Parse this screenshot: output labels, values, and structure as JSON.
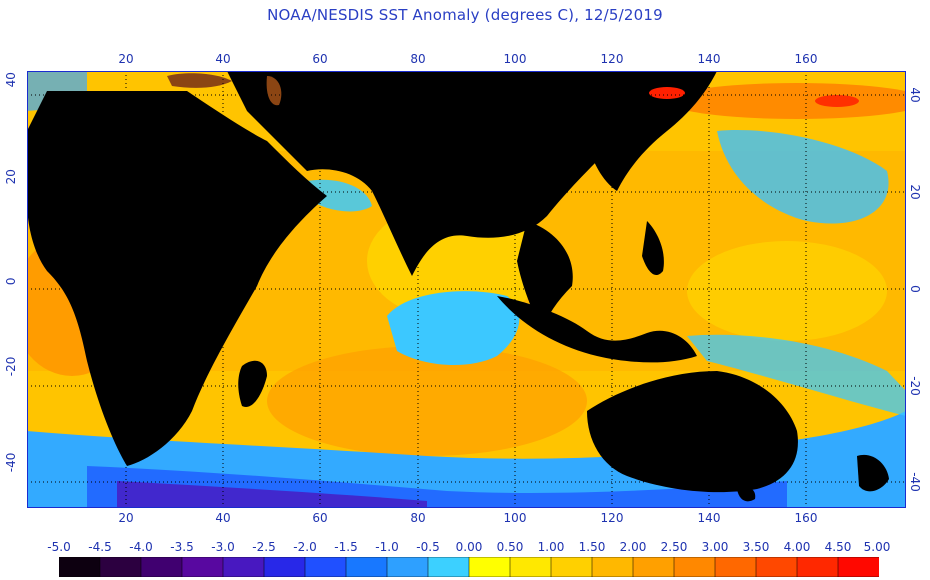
{
  "title": "NOAA/NESDIS SST Anomaly (degrees C), 12/5/2019",
  "map": {
    "lon_ticks": [
      "20",
      "40",
      "60",
      "80",
      "100",
      "120",
      "140",
      "160"
    ],
    "lat_ticks_left": [
      "40",
      "20",
      "0",
      "-20",
      "-40"
    ],
    "lat_ticks_right": [
      "40",
      "20",
      "0",
      "-20",
      "-40"
    ],
    "land_color": "#000000",
    "grid_style": "dotted",
    "border_color": "#1a2ccf"
  },
  "colorbar": {
    "labels": [
      "-5.0",
      "-4.5",
      "-4.0",
      "-3.5",
      "-3.0",
      "-2.5",
      "-2.0",
      "-1.5",
      "-1.0",
      "-0.5",
      "0.00",
      "0.50",
      "1.00",
      "1.50",
      "2.00",
      "2.50",
      "3.00",
      "3.50",
      "4.00",
      "4.50",
      "5.00"
    ],
    "colors": [
      "#0d0010",
      "#2c0040",
      "#400070",
      "#5808a0",
      "#4818c0",
      "#2828e8",
      "#2050ff",
      "#1878ff",
      "#2ea0ff",
      "#3cd0ff",
      "#ffff00",
      "#ffe800",
      "#ffd000",
      "#ffb800",
      "#ffa000",
      "#ff8800",
      "#ff6800",
      "#ff4800",
      "#ff2800",
      "#ff0800"
    ]
  }
}
